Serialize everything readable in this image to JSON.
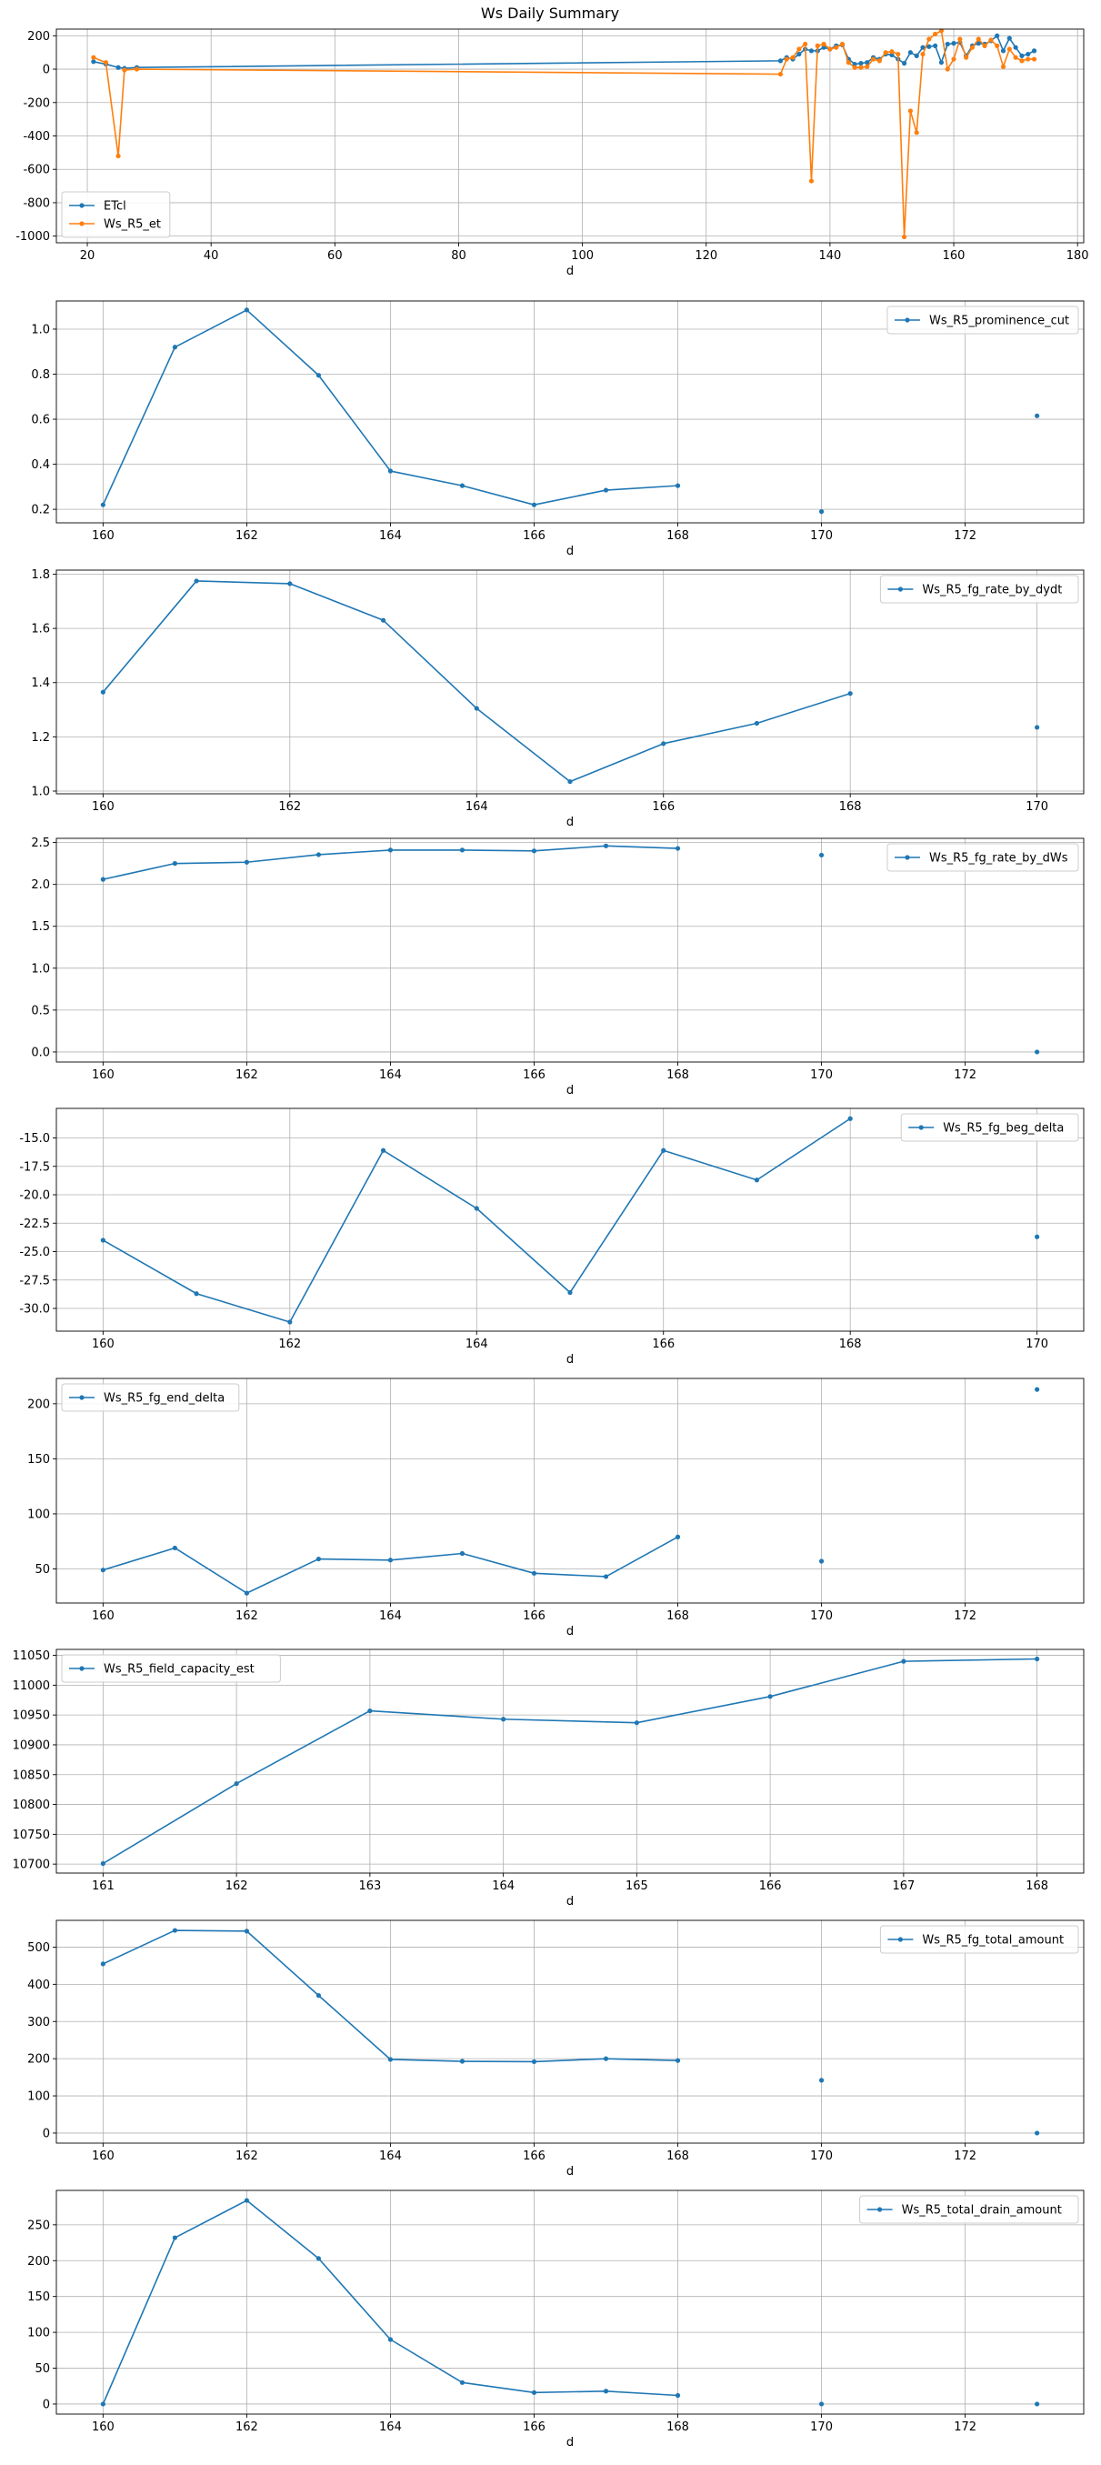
{
  "figure": {
    "title": "Ws Daily Summary",
    "colors": {
      "series0": "#1f77b4",
      "series1": "#ff7f0e",
      "grid": "#b0b0b0",
      "axis": "#000000"
    }
  },
  "chart_data": [
    {
      "type": "line",
      "xlabel": "d",
      "xlim": [
        15,
        181
      ],
      "ylim": [
        -1040,
        240
      ],
      "xticks": [
        20,
        40,
        60,
        80,
        100,
        120,
        140,
        160,
        180
      ],
      "xtick_labels": [
        "20",
        "40",
        "60",
        "80",
        "100",
        "120",
        "140",
        "160",
        "180"
      ],
      "yticks": [
        -1000,
        -800,
        -600,
        -400,
        -200,
        0,
        200
      ],
      "ytick_labels": [
        "-1000",
        "-800",
        "-600",
        "-400",
        "-200",
        "0",
        "200"
      ],
      "legend": "lower-left",
      "series": [
        {
          "name": "ETcl",
          "x": [
            21,
            23,
            25,
            26,
            28,
            132,
            133,
            134,
            135,
            136,
            137,
            138,
            139,
            140,
            141,
            142,
            143,
            144,
            145,
            146,
            147,
            148,
            149,
            150,
            151,
            152,
            153,
            154,
            155,
            156,
            157,
            158,
            159,
            160,
            161,
            162,
            163,
            164,
            165,
            166,
            167,
            168,
            169,
            170,
            171,
            172,
            173
          ],
          "y": [
            45,
            30,
            10,
            5,
            10,
            50,
            70,
            60,
            90,
            120,
            110,
            110,
            130,
            120,
            140,
            145,
            60,
            30,
            35,
            40,
            70,
            60,
            90,
            85,
            60,
            35,
            100,
            80,
            130,
            135,
            140,
            40,
            150,
            155,
            160,
            80,
            140,
            155,
            150,
            170,
            200,
            110,
            185,
            130,
            80,
            90,
            110
          ]
        },
        {
          "name": "Ws_R5_et",
          "x": [
            21,
            23,
            25,
            26,
            28,
            132,
            133,
            134,
            135,
            136,
            137,
            138,
            139,
            140,
            141,
            142,
            143,
            144,
            145,
            146,
            147,
            148,
            149,
            150,
            151,
            152,
            153,
            154,
            155,
            156,
            157,
            158,
            159,
            160,
            161,
            162,
            163,
            164,
            165,
            166,
            167,
            168,
            169,
            170,
            171,
            172,
            173
          ],
          "y": [
            70,
            40,
            -520,
            -5,
            0,
            -30,
            60,
            70,
            120,
            150,
            -670,
            140,
            150,
            120,
            130,
            150,
            40,
            10,
            10,
            15,
            60,
            50,
            100,
            105,
            90,
            -1005,
            -250,
            -380,
            90,
            180,
            210,
            230,
            0,
            60,
            180,
            70,
            130,
            180,
            140,
            175,
            140,
            15,
            120,
            70,
            50,
            60,
            60
          ]
        }
      ]
    },
    {
      "type": "line",
      "xlabel": "d",
      "xlim": [
        159.35,
        173.65
      ],
      "ylim": [
        0.14,
        1.125
      ],
      "xticks": [
        160,
        162,
        164,
        166,
        168,
        170,
        172
      ],
      "xtick_labels": [
        "160",
        "162",
        "164",
        "166",
        "168",
        "170",
        "172"
      ],
      "yticks": [
        0.2,
        0.4,
        0.6,
        0.8,
        1.0
      ],
      "ytick_labels": [
        "0.2",
        "0.4",
        "0.6",
        "0.8",
        "1.0"
      ],
      "legend": "upper-right",
      "series": [
        {
          "name": "Ws_R5_prominence_cut",
          "x": [
            160,
            161,
            162,
            163,
            164,
            165,
            166,
            167,
            168,
            170,
            173
          ],
          "y": [
            0.22,
            0.92,
            1.085,
            0.795,
            0.37,
            0.305,
            0.22,
            0.285,
            0.305,
            0.19,
            0.615
          ]
        }
      ]
    },
    {
      "type": "line",
      "xlabel": "d",
      "xlim": [
        159.5,
        170.5
      ],
      "ylim": [
        0.99,
        1.815
      ],
      "xticks": [
        160,
        162,
        164,
        166,
        168,
        170
      ],
      "xtick_labels": [
        "160",
        "162",
        "164",
        "166",
        "168",
        "170"
      ],
      "yticks": [
        1.0,
        1.2,
        1.4,
        1.6,
        1.8
      ],
      "ytick_labels": [
        "1.0",
        "1.2",
        "1.4",
        "1.6",
        "1.8"
      ],
      "legend": "upper-right",
      "series": [
        {
          "name": "Ws_R5_fg_rate_by_dydt",
          "x": [
            160,
            161,
            162,
            163,
            164,
            165,
            166,
            167,
            168,
            170
          ],
          "y": [
            1.365,
            1.775,
            1.765,
            1.63,
            1.305,
            1.035,
            1.175,
            1.25,
            1.36,
            1.235
          ]
        }
      ]
    },
    {
      "type": "line",
      "xlabel": "d",
      "xlim": [
        159.35,
        173.65
      ],
      "ylim": [
        -0.12,
        2.55
      ],
      "xticks": [
        160,
        162,
        164,
        166,
        168,
        170,
        172
      ],
      "xtick_labels": [
        "160",
        "162",
        "164",
        "166",
        "168",
        "170",
        "172"
      ],
      "yticks": [
        0.0,
        0.5,
        1.0,
        1.5,
        2.0,
        2.5
      ],
      "ytick_labels": [
        "0.0",
        "0.5",
        "1.0",
        "1.5",
        "2.0",
        "2.5"
      ],
      "legend": "upper-right",
      "series": [
        {
          "name": "Ws_R5_fg_rate_by_dWs",
          "x": [
            160,
            161,
            162,
            163,
            164,
            165,
            166,
            167,
            168,
            170,
            173
          ],
          "y": [
            2.06,
            2.25,
            2.265,
            2.355,
            2.41,
            2.41,
            2.4,
            2.46,
            2.43,
            2.35,
            0.0
          ]
        }
      ]
    },
    {
      "type": "line",
      "xlabel": "d",
      "xlim": [
        159.5,
        170.5
      ],
      "ylim": [
        -32.0,
        -12.4
      ],
      "xticks": [
        160,
        162,
        164,
        166,
        168,
        170
      ],
      "xtick_labels": [
        "160",
        "162",
        "164",
        "166",
        "168",
        "170"
      ],
      "yticks": [
        -30.0,
        -27.5,
        -25.0,
        -22.5,
        -20.0,
        -17.5,
        -15.0
      ],
      "ytick_labels": [
        "-30.0",
        "-27.5",
        "-25.0",
        "-22.5",
        "-20.0",
        "-17.5",
        "-15.0"
      ],
      "legend": "upper-right",
      "series": [
        {
          "name": "Ws_R5_fg_beg_delta",
          "x": [
            160,
            161,
            162,
            163,
            164,
            165,
            166,
            167,
            168,
            170
          ],
          "y": [
            -24.0,
            -28.7,
            -31.2,
            -16.1,
            -21.2,
            -28.6,
            -16.1,
            -18.7,
            -13.3,
            -23.7
          ]
        }
      ]
    },
    {
      "type": "line",
      "xlabel": "d",
      "xlim": [
        159.35,
        173.65
      ],
      "ylim": [
        19,
        223
      ],
      "xticks": [
        160,
        162,
        164,
        166,
        168,
        170,
        172
      ],
      "xtick_labels": [
        "160",
        "162",
        "164",
        "166",
        "168",
        "170",
        "172"
      ],
      "yticks": [
        50,
        100,
        150,
        200
      ],
      "ytick_labels": [
        "50",
        "100",
        "150",
        "200"
      ],
      "legend": "upper-left",
      "series": [
        {
          "name": "Ws_R5_fg_end_delta",
          "x": [
            160,
            161,
            162,
            163,
            164,
            165,
            166,
            167,
            168,
            170,
            173
          ],
          "y": [
            49,
            69,
            28,
            59,
            58,
            64,
            46,
            43,
            79,
            57,
            213
          ]
        }
      ]
    },
    {
      "type": "line",
      "xlabel": "d",
      "xlim": [
        160.65,
        168.35
      ],
      "ylim": [
        10685,
        11060
      ],
      "xticks": [
        161,
        162,
        163,
        164,
        165,
        166,
        167,
        168
      ],
      "xtick_labels": [
        "161",
        "162",
        "163",
        "164",
        "165",
        "166",
        "167",
        "168"
      ],
      "yticks": [
        10700,
        10750,
        10800,
        10850,
        10900,
        10950,
        11000,
        11050
      ],
      "ytick_labels": [
        "10700",
        "10750",
        "10800",
        "10850",
        "10900",
        "10950",
        "11000",
        "11050"
      ],
      "legend": "upper-left",
      "series": [
        {
          "name": "Ws_R5_field_capacity_est",
          "x": [
            161,
            162,
            163,
            164,
            165,
            166,
            167,
            168
          ],
          "y": [
            10701,
            10835,
            10957,
            10943,
            10937,
            10981,
            11040,
            11044
          ]
        }
      ]
    },
    {
      "type": "line",
      "xlabel": "d",
      "xlim": [
        159.35,
        173.65
      ],
      "ylim": [
        -27,
        572
      ],
      "xticks": [
        160,
        162,
        164,
        166,
        168,
        170,
        172
      ],
      "xtick_labels": [
        "160",
        "162",
        "164",
        "166",
        "168",
        "170",
        "172"
      ],
      "yticks": [
        0,
        100,
        200,
        300,
        400,
        500
      ],
      "ytick_labels": [
        "0",
        "100",
        "200",
        "300",
        "400",
        "500"
      ],
      "legend": "upper-right",
      "series": [
        {
          "name": "Ws_R5_fg_total_amount",
          "x": [
            160,
            161,
            162,
            163,
            164,
            165,
            166,
            167,
            168,
            170,
            173
          ],
          "y": [
            455,
            545,
            543,
            370,
            198,
            193,
            192,
            200,
            195,
            142,
            0
          ]
        }
      ]
    },
    {
      "type": "line",
      "xlabel": "d",
      "xlim": [
        159.35,
        173.65
      ],
      "ylim": [
        -14,
        298
      ],
      "xticks": [
        160,
        162,
        164,
        166,
        168,
        170,
        172
      ],
      "xtick_labels": [
        "160",
        "162",
        "164",
        "166",
        "168",
        "170",
        "172"
      ],
      "yticks": [
        0,
        50,
        100,
        150,
        200,
        250
      ],
      "ytick_labels": [
        "0",
        "50",
        "100",
        "150",
        "200",
        "250"
      ],
      "legend": "upper-right",
      "series": [
        {
          "name": "Ws_R5_total_drain_amount",
          "x": [
            160,
            161,
            162,
            163,
            164,
            165,
            166,
            167,
            168,
            170,
            173
          ],
          "y": [
            0,
            232,
            284,
            203,
            90,
            30,
            16,
            18,
            12,
            0,
            0
          ]
        }
      ]
    }
  ]
}
